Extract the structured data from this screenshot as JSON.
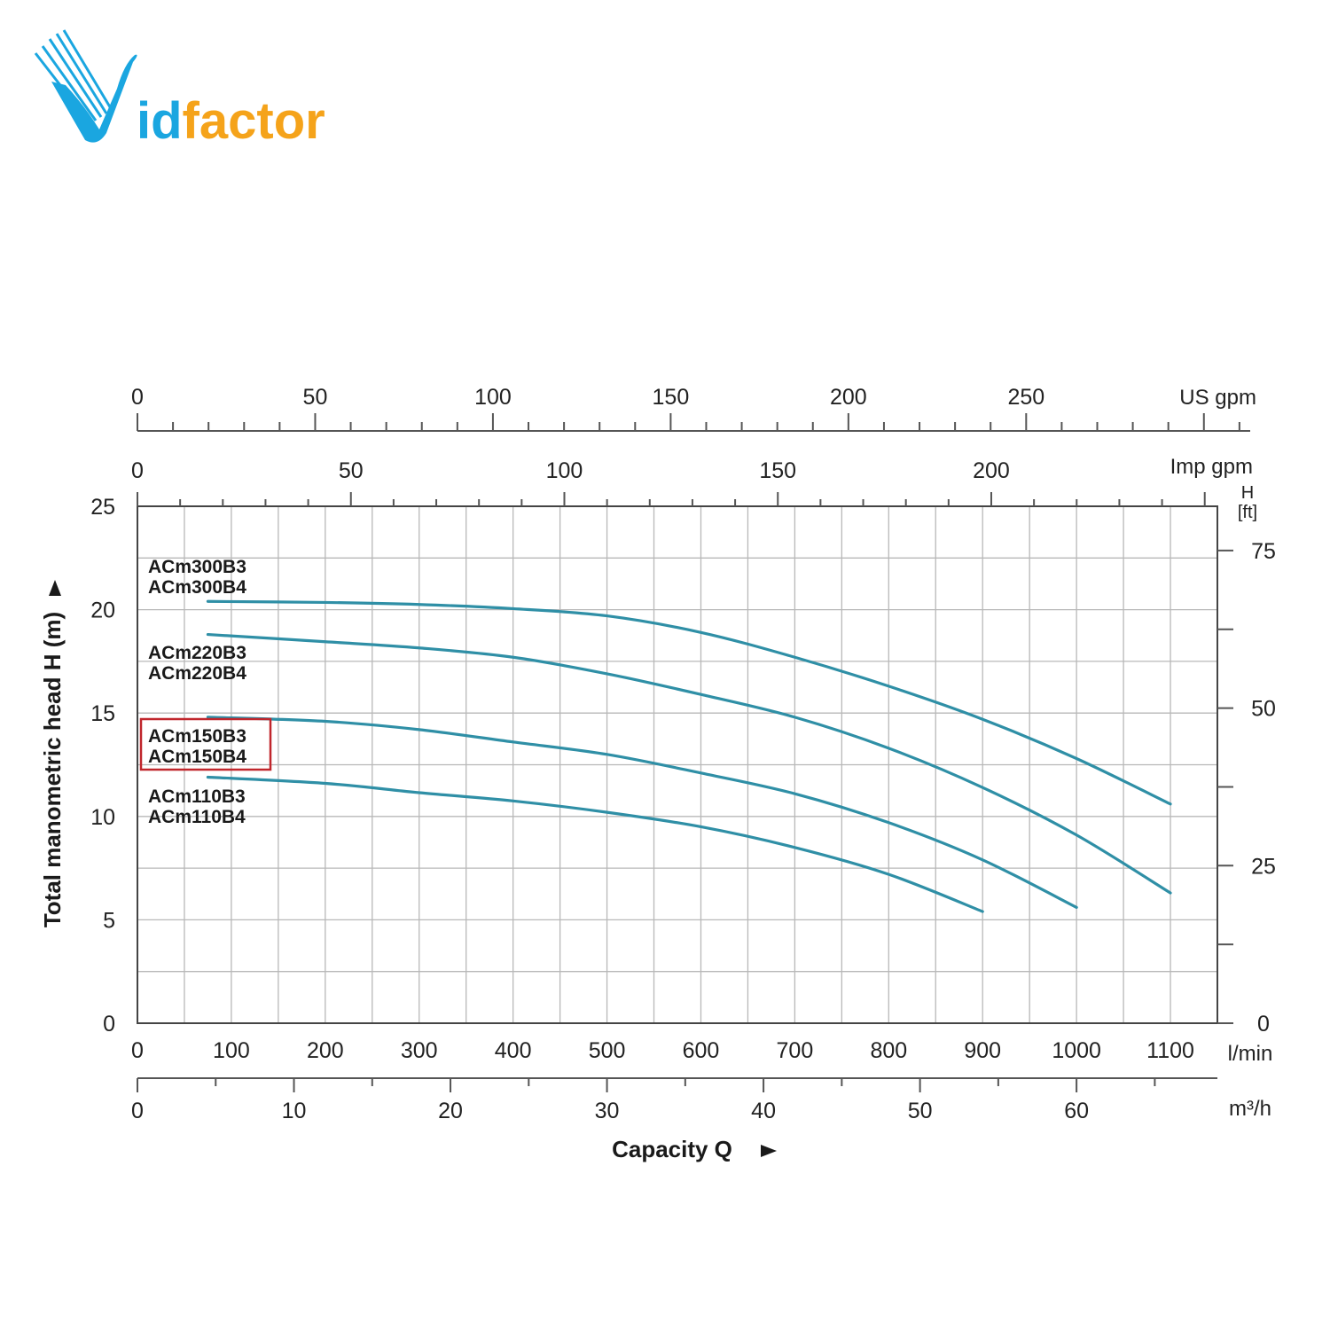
{
  "logo": {
    "text": "Vidfactor",
    "initial": "V",
    "rest_blue": "id",
    "rest_orange": "factor",
    "blue": "#1aa6e0",
    "orange": "#f5a31a"
  },
  "colors": {
    "curve": "#2f8fa6",
    "grid": "#b8b8b8",
    "axis": "#555555",
    "highlight": "#c0262c"
  },
  "chart_data": {
    "type": "line",
    "xlabel": "Capacity Q",
    "ylabel": "Total manometric head H (m)",
    "x_unit": "l/min",
    "xlim": [
      0,
      1150
    ],
    "ylim": [
      0,
      25
    ],
    "x_ticks": [
      0,
      100,
      200,
      300,
      400,
      500,
      600,
      700,
      800,
      900,
      1000,
      1100
    ],
    "y_ticks": [
      0,
      5,
      10,
      15,
      20,
      25
    ],
    "grid": true,
    "secondary_axes": {
      "us_gpm": {
        "unit": "US gpm",
        "ticks": [
          0,
          50,
          100,
          150,
          200,
          250
        ]
      },
      "imp_gpm": {
        "unit": "Imp gpm",
        "ticks": [
          0,
          50,
          100,
          150,
          200
        ]
      },
      "m3h": {
        "unit": "m³/h",
        "ticks": [
          0,
          10,
          20,
          30,
          40,
          50,
          60
        ]
      },
      "h_ft": {
        "unit_top": "H",
        "unit_bottom": "[ft]",
        "ticks": [
          0,
          25,
          50,
          75
        ]
      }
    },
    "series": [
      {
        "name": "ACm300B3 / ACm300B4",
        "label_lines": [
          "ACm300B3",
          "ACm300B4"
        ],
        "x": [
          75,
          200,
          300,
          400,
          500,
          600,
          700,
          800,
          900,
          1000,
          1100
        ],
        "y": [
          20.4,
          20.35,
          20.25,
          20.05,
          19.7,
          18.9,
          17.7,
          16.3,
          14.7,
          12.8,
          10.6
        ]
      },
      {
        "name": "ACm220B3 / ACm220B4",
        "label_lines": [
          "ACm220B3",
          "ACm220B4"
        ],
        "x": [
          75,
          200,
          300,
          400,
          500,
          600,
          700,
          800,
          900,
          1000,
          1100
        ],
        "y": [
          18.8,
          18.45,
          18.15,
          17.7,
          16.9,
          15.9,
          14.8,
          13.3,
          11.4,
          9.1,
          6.3
        ]
      },
      {
        "name": "ACm150B3 / ACm150B4",
        "label_lines": [
          "ACm150B3",
          "ACm150B4"
        ],
        "highlighted": true,
        "x": [
          75,
          200,
          300,
          400,
          500,
          600,
          700,
          800,
          900,
          1000
        ],
        "y": [
          14.8,
          14.6,
          14.2,
          13.6,
          13.0,
          12.1,
          11.1,
          9.7,
          7.9,
          5.6
        ]
      },
      {
        "name": "ACm110B3 / ACm110B4",
        "label_lines": [
          "ACm110B3",
          "ACm110B4"
        ],
        "x": [
          75,
          200,
          300,
          400,
          500,
          600,
          700,
          800,
          900
        ],
        "y": [
          11.9,
          11.6,
          11.15,
          10.75,
          10.2,
          9.5,
          8.5,
          7.2,
          5.4
        ]
      }
    ]
  }
}
